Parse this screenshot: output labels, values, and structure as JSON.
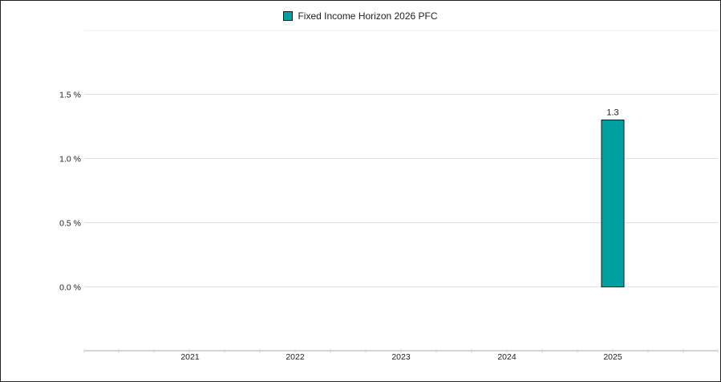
{
  "chart_data": {
    "type": "bar",
    "categories": [
      "2021",
      "2022",
      "2023",
      "2024",
      "2025"
    ],
    "series": [
      {
        "name": "Fixed Income Horizon 2026 PFC",
        "values": [
          null,
          null,
          null,
          null,
          1.3
        ],
        "data_labels": [
          "",
          "",
          "",
          "",
          "1.3"
        ],
        "color": "#00A0A0"
      }
    ],
    "y_ticks": [
      1.5,
      1.0,
      0.5,
      0.0
    ],
    "y_tick_labels": [
      "1.5 %",
      "1.0 %",
      "0.5 %",
      "0.0 %"
    ],
    "ylim": [
      -0.5,
      2.0
    ],
    "grid": true,
    "legend_position": "top"
  }
}
